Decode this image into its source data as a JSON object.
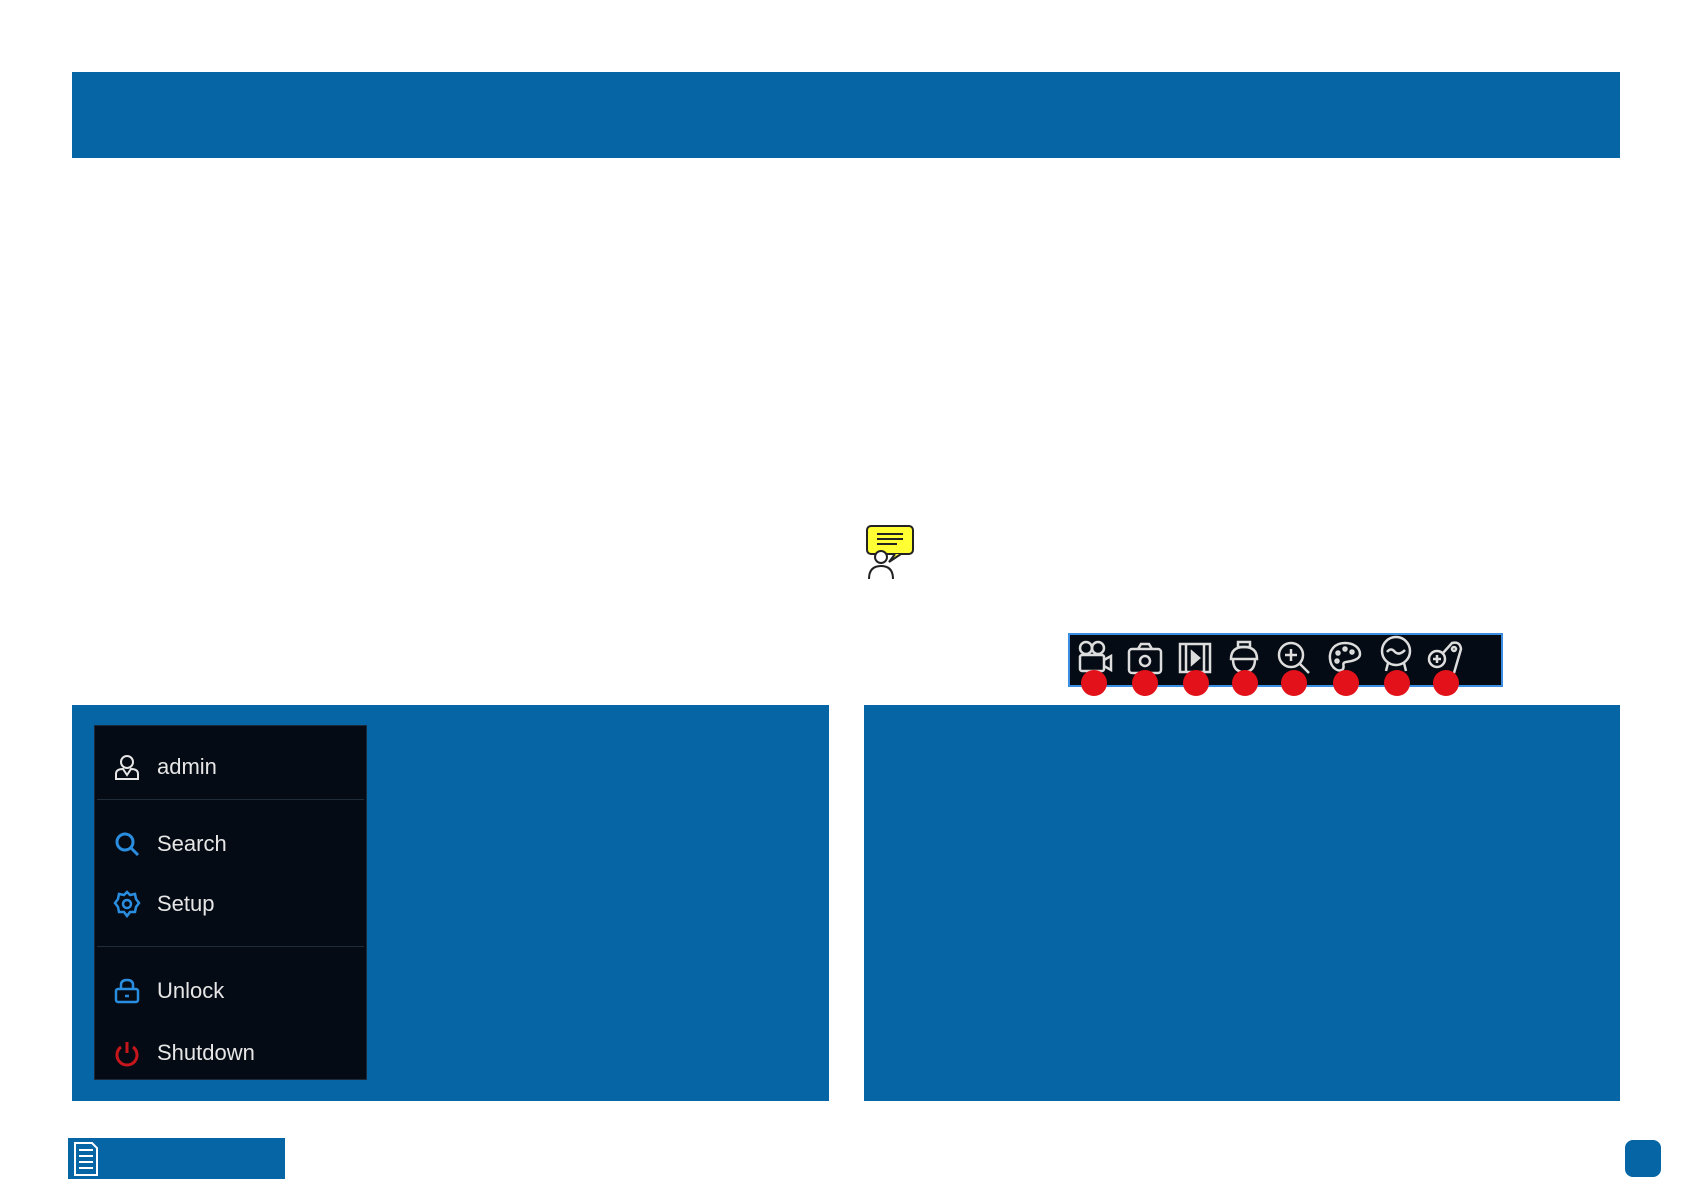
{
  "menu": {
    "items": [
      {
        "label": "admin",
        "icon": "user-icon"
      },
      {
        "label": "Search",
        "icon": "search-icon"
      },
      {
        "label": "Setup",
        "icon": "gear-icon"
      },
      {
        "label": "Unlock",
        "icon": "lock-icon"
      },
      {
        "label": "Shutdown",
        "icon": "power-icon"
      }
    ]
  },
  "toolbar": {
    "icons": [
      "video-camera-icon",
      "camera-icon",
      "playback-icon",
      "ptz-camera-icon",
      "zoom-in-icon",
      "palette-icon",
      "fisheye-icon",
      "add-camera-icon"
    ]
  },
  "colors": {
    "brand_blue": "#0565a5",
    "menu_bg": "#050b14",
    "accent_blue": "#2a8ee0",
    "power_red": "#c8161d",
    "marker_red": "#e3111a",
    "note_yellow": "#ffff33"
  }
}
